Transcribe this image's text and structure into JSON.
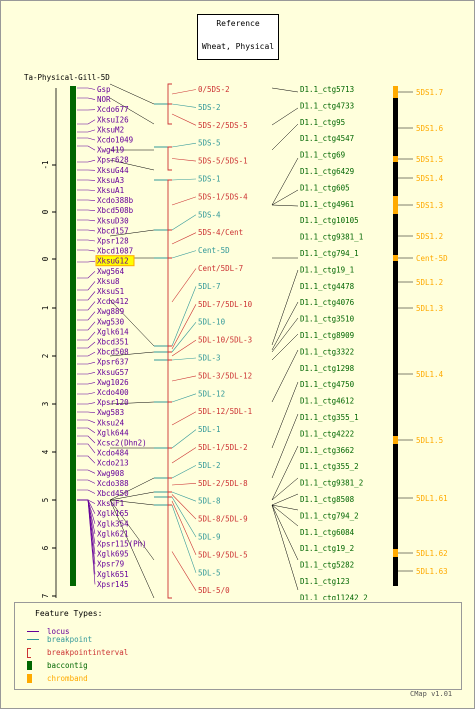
{
  "title": {
    "line1": "Reference",
    "line2": "Wheat, Physical"
  },
  "map_name": "Ta-Physical-Gill-5D",
  "axis_ticks": [
    "-1",
    "0",
    "0",
    "1",
    "2",
    "3",
    "4",
    "5",
    "6",
    "7"
  ],
  "loci": [
    "Gsp",
    "NOR",
    "Xcdo677",
    "XksuI26",
    "XksuM2",
    "Xcdo1049",
    "Xwg419",
    "Xpsr628",
    "XksuG44",
    "XksuA3",
    "XksuA1",
    "Xcdo388b",
    "Xbcd508b",
    "XksuD30",
    "Xbcd157",
    "Xpsr128",
    "Xbcd1087",
    "XksuG12",
    "Xwg564",
    "Xksu8",
    "XksuS1",
    "Xcdo412",
    "Xwg889",
    "Xwg530",
    "Xglk614",
    "Xbcd351",
    "Xbcd508",
    "Xpsr637",
    "XksuG57",
    "Xwg1026",
    "Xcdo400",
    "Xpsr120",
    "Xwg583",
    "Xksu24",
    "Xglk644",
    "Xcsc2(Dhn2)",
    "Xcdo484",
    "Xcdo213",
    "Xwg908",
    "Xcdo388",
    "Xbcd450",
    "XksuF1",
    "Xglk165",
    "Xglk354",
    "Xglk621",
    "Xpsr115(Ph)",
    "Xglk695",
    "Xpsr79",
    "Xglk651",
    "Xpsr145"
  ],
  "highlighted_locus": "XksuG12",
  "intervals": [
    {
      "label": "0/5DS-2",
      "kind": "interval"
    },
    {
      "label": "5DS-2",
      "kind": "breakpoint"
    },
    {
      "label": "5DS-2/5DS-5",
      "kind": "interval"
    },
    {
      "label": "5DS-5",
      "kind": "breakpoint"
    },
    {
      "label": "5DS-5/5DS-1",
      "kind": "interval"
    },
    {
      "label": "5DS-1",
      "kind": "breakpoint"
    },
    {
      "label": "5DS-1/5DS-4",
      "kind": "interval"
    },
    {
      "label": "5DS-4",
      "kind": "breakpoint"
    },
    {
      "label": "5DS-4/Cent",
      "kind": "interval"
    },
    {
      "label": "Cent-5D",
      "kind": "breakpoint"
    },
    {
      "label": "Cent/5DL-7",
      "kind": "interval"
    },
    {
      "label": "5DL-7",
      "kind": "breakpoint"
    },
    {
      "label": "5DL-7/5DL-10",
      "kind": "interval"
    },
    {
      "label": "5DL-10",
      "kind": "breakpoint"
    },
    {
      "label": "5DL-10/5DL-3",
      "kind": "interval"
    },
    {
      "label": "5DL-3",
      "kind": "breakpoint"
    },
    {
      "label": "5DL-3/5DL-12",
      "kind": "interval"
    },
    {
      "label": "5DL-12",
      "kind": "breakpoint"
    },
    {
      "label": "5DL-12/5DL-1",
      "kind": "interval"
    },
    {
      "label": "5DL-1",
      "kind": "breakpoint"
    },
    {
      "label": "5DL-1/5DL-2",
      "kind": "interval"
    },
    {
      "label": "5DL-2",
      "kind": "breakpoint"
    },
    {
      "label": "5DL-2/5DL-8",
      "kind": "interval"
    },
    {
      "label": "5DL-8",
      "kind": "breakpoint"
    },
    {
      "label": "5DL-8/5DL-9",
      "kind": "interval"
    },
    {
      "label": "5DL-9",
      "kind": "breakpoint"
    },
    {
      "label": "5DL-9/5DL-5",
      "kind": "interval"
    },
    {
      "label": "5DL-5",
      "kind": "breakpoint"
    },
    {
      "label": "5DL-5/0",
      "kind": "interval"
    }
  ],
  "contigs": [
    "D1.1_ctg5713",
    "D1.1_ctg4733",
    "D1.1_ctg95",
    "D1.1_ctg4547",
    "D1.1_ctg69",
    "D1.1_ctg6429",
    "D1.1_ctg605",
    "D1.1_ctg4961",
    "D1.1_ctg10105",
    "D1.1_ctg9381_1",
    "D1.1_ctg794_1",
    "D1.1_ctg19_1",
    "D1.1_ctg4478",
    "D1.1_ctg4076",
    "D1.1_ctg3510",
    "D1.1_ctg8909",
    "D1.1_ctg3322",
    "D1.1_ctg1298",
    "D1.1_ctg4750",
    "D1.1_ctg4612",
    "D1.1_ctg355_1",
    "D1.1_ctg4222",
    "D1.1_ctg3662",
    "D1.1_ctg355_2",
    "D1.1_ctg9381_2",
    "D1.1_ctg8508",
    "D1.1_ctg794_2",
    "D1.1_ctg6084",
    "D1.1_ctg19_2",
    "D1.1_ctg5282",
    "D1.1_ctg123",
    "D1.1_ctg11242_2"
  ],
  "bands": [
    "5DS1.7",
    "5DS1.6",
    "5DS1.5",
    "5DS1.4",
    "5DS1.3",
    "5DS1.2",
    "Cent-5D",
    "5DL1.2",
    "5DL1.3",
    "5DL1.4",
    "5DL1.5",
    "5DL1.61",
    "5DL1.62",
    "5DL1.63"
  ],
  "legend": {
    "title": "Feature Types:",
    "items": [
      "locus",
      "breakpoint",
      "breakpointinterval",
      "baccontig",
      "chromband"
    ]
  },
  "credit": "CMap v1.01",
  "colors": {
    "background": "#ffffdc",
    "locus": "#660099",
    "breakpoint": "#339999",
    "interval": "#cc3333",
    "contig": "#006600",
    "band": "#ffaa00",
    "backbone": "#006600",
    "highlight": "#ffff00"
  }
}
